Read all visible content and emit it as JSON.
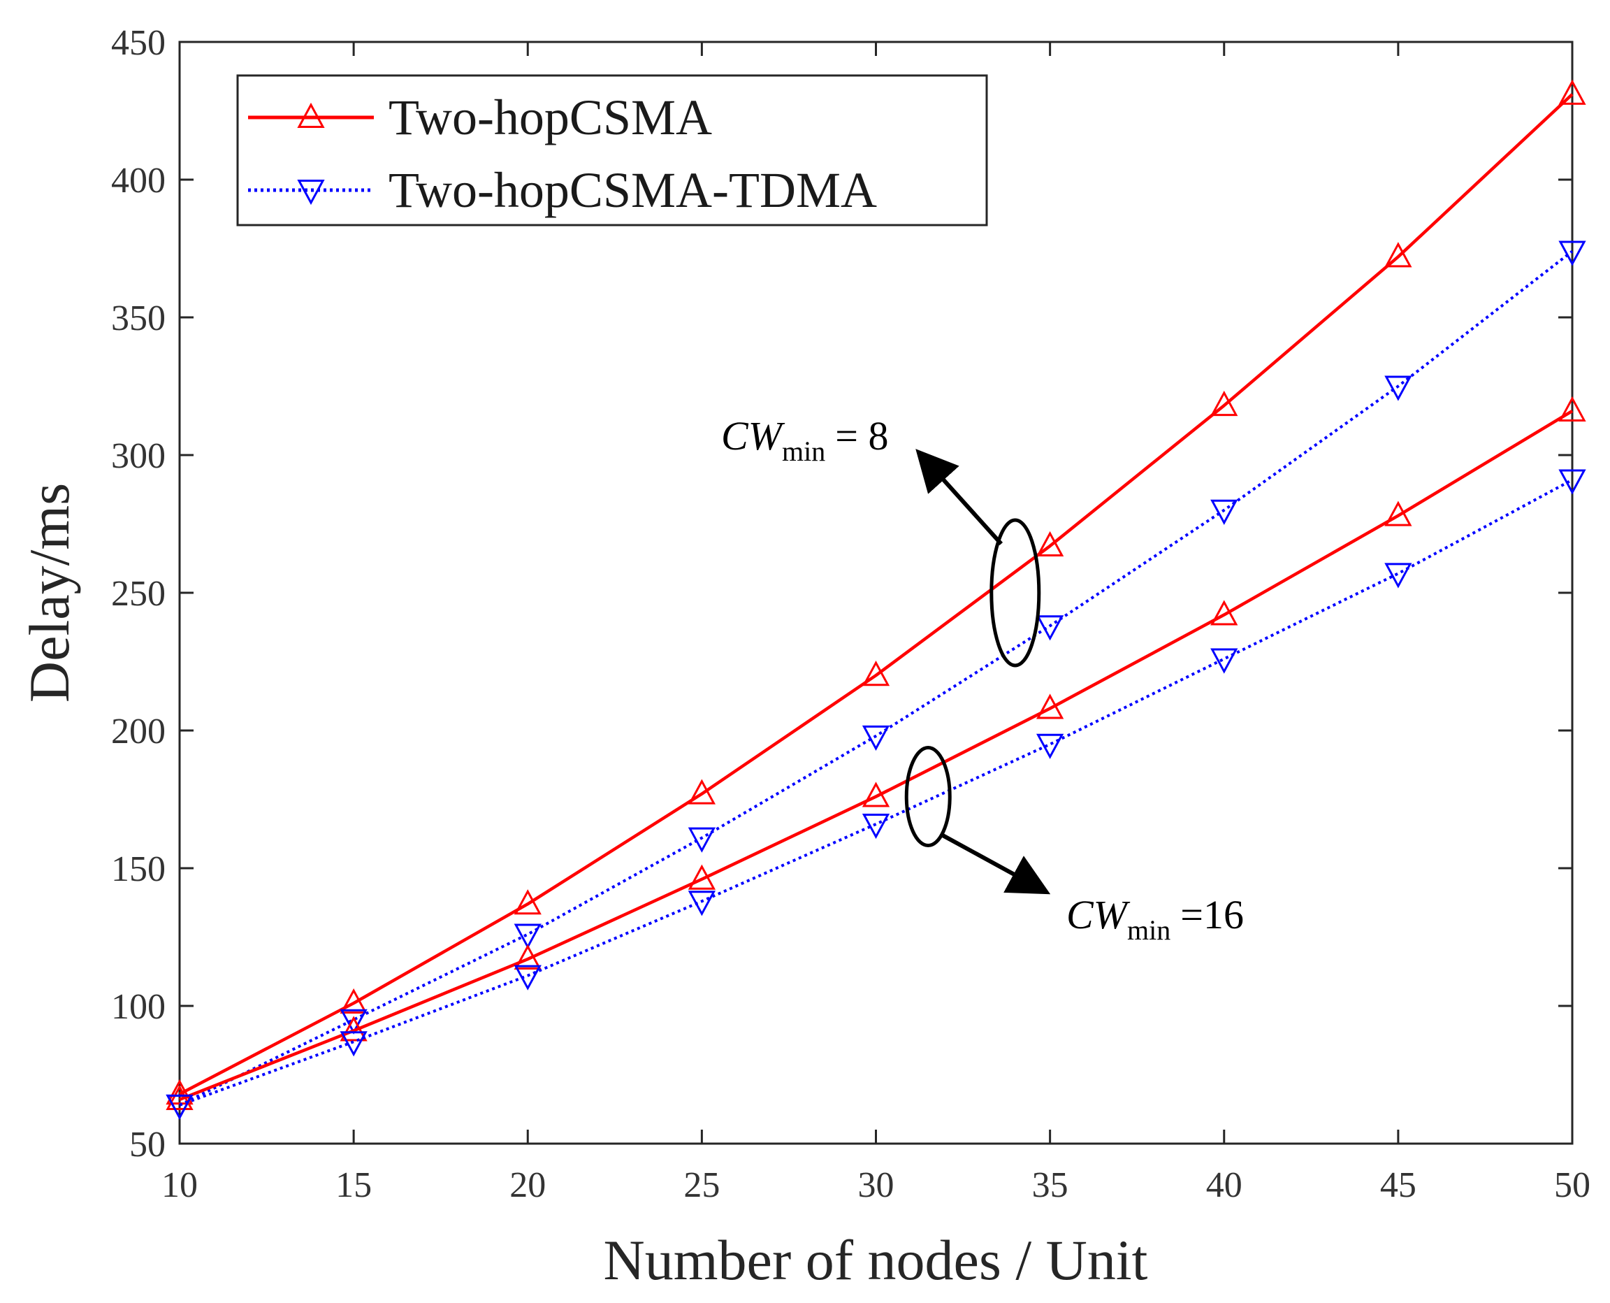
{
  "chart_data": {
    "type": "line",
    "title": "",
    "xlabel": "Number of nodes / Unit",
    "ylabel": "Delay/ms",
    "x": [
      10,
      15,
      20,
      25,
      30,
      35,
      40,
      45,
      50
    ],
    "xlim": [
      10,
      50
    ],
    "ylim": [
      50,
      450
    ],
    "xticks": [
      10,
      15,
      20,
      25,
      30,
      35,
      40,
      45,
      50
    ],
    "yticks": [
      50,
      100,
      150,
      200,
      250,
      300,
      350,
      400,
      450
    ],
    "xtick_labels": [
      "10",
      "15",
      "20",
      "25",
      "30",
      "35",
      "40",
      "45",
      "50"
    ],
    "ytick_labels": [
      "50",
      "100",
      "150",
      "200",
      "250",
      "300",
      "350",
      "400",
      "450"
    ],
    "grid": false,
    "legend_position": "top-left",
    "legend": [
      {
        "label": "Two-hopCSMA",
        "color": "#ff0000",
        "marker": "triangle-up",
        "dash": "solid"
      },
      {
        "label": "Two-hopCSMA-TDMA",
        "color": "#0000ff",
        "marker": "triangle-down",
        "dash": "dotted"
      }
    ],
    "series": [
      {
        "name": "Two-hopCSMA",
        "group": "CWmin=8",
        "color": "#ff0000",
        "marker": "triangle-up",
        "dash": "solid",
        "values": [
          68,
          101,
          137,
          177,
          220,
          267,
          318,
          372,
          431
        ]
      },
      {
        "name": "Two-hopCSMA-TDMA",
        "group": "CWmin=8",
        "color": "#0000ff",
        "marker": "triangle-down",
        "dash": "dotted",
        "values": [
          64,
          95,
          126,
          161,
          198,
          238,
          280,
          325,
          374
        ]
      },
      {
        "name": "Two-hopCSMA",
        "group": "CWmin=16",
        "color": "#ff0000",
        "marker": "triangle-up",
        "dash": "solid",
        "values": [
          66,
          91,
          117,
          146,
          176,
          208,
          242,
          278,
          316
        ]
      },
      {
        "name": "Two-hopCSMA-TDMA",
        "group": "CWmin=16",
        "color": "#0000ff",
        "marker": "triangle-down",
        "dash": "dotted",
        "values": [
          64,
          87,
          111,
          138,
          166,
          195,
          226,
          257,
          291
        ]
      }
    ],
    "annotations": [
      {
        "name": "annotation-cwmin-8",
        "main": "CW",
        "sub": "min",
        "value": "= 8",
        "ellipse_at": {
          "x": 34,
          "y": 250
        },
        "arrow_to": {
          "x": 31.3,
          "y": 300
        }
      },
      {
        "name": "annotation-cwmin-16",
        "main": "CW",
        "sub": "min",
        "value": "=16",
        "ellipse_at": {
          "x": 31.5,
          "y": 176
        },
        "arrow_to": {
          "x": 34.8,
          "y": 142
        }
      }
    ]
  }
}
